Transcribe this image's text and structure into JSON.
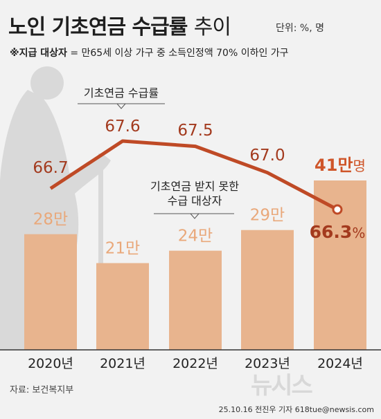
{
  "title_bold": "노인 기초연금",
  "title_bold2": "수급률",
  "title_light": "추이",
  "unit_label": "단위: %, 명",
  "subtitle_bold": "※지급 대상자",
  "subtitle_text": " = 만65세 이상 가구 중 소득인정액 70% 이하인 가구",
  "source": "자료: 보건복지부",
  "credit": "25.10.16  전진우 기자  618tue@newsis.com",
  "watermark": "뉴시스",
  "colors": {
    "bar": "#e8b48e",
    "bar_label": "#e9a87a",
    "line": "#bf4a26",
    "line_label": "#a33a1e",
    "highlight": "#cf5529",
    "silhouette": "#d9d9d9"
  },
  "chart_data": {
    "type": "bar+line",
    "categories": [
      "2020년",
      "2021년",
      "2022년",
      "2023년",
      "2024년"
    ],
    "bar_labels": [
      "28만",
      "21만",
      "24만",
      "29만",
      "41만"
    ],
    "bar_values": [
      280000,
      210000,
      240000,
      290000,
      410000
    ],
    "bar_unit_last": "명",
    "line_values": [
      66.7,
      67.6,
      67.5,
      67.0,
      66.3
    ],
    "line_labels": [
      "66.7",
      "67.6",
      "67.5",
      "67.0",
      "66.3"
    ],
    "line_unit_last": "%",
    "line_annotation": "기초연금 수급률",
    "bar_annotation_line1": "기초연금 받지 못한",
    "bar_annotation_line2": "수급 대상자"
  }
}
